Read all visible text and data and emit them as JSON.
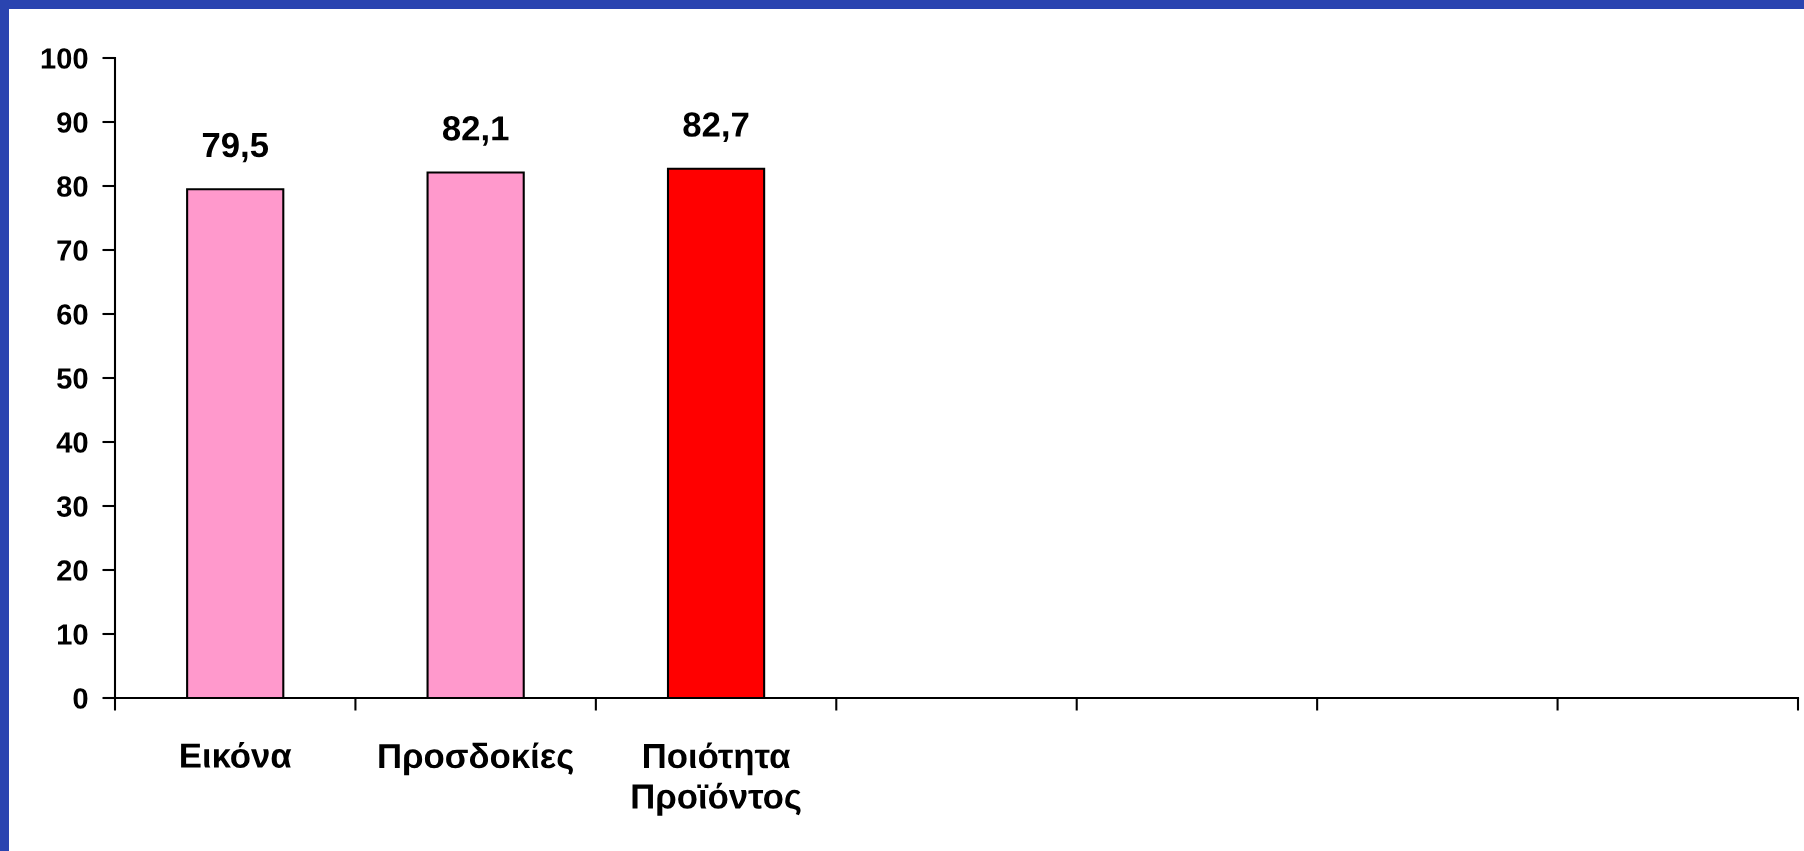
{
  "chart_data": {
    "type": "bar",
    "categories": [
      "Εικόνα",
      "Προσδοκίες",
      "Ποιότητα\nΠροϊόντος",
      null,
      null,
      null,
      null
    ],
    "values": [
      79.5,
      82.1,
      82.7,
      null,
      null,
      null,
      null
    ],
    "colors": [
      "#ff99cc",
      "#ff99cc",
      "#ff0000",
      null,
      null,
      null,
      null
    ],
    "value_labels": [
      "79,5",
      "82,1",
      "82,7",
      null,
      null,
      null,
      null
    ],
    "ylim": [
      0,
      100
    ],
    "yticks": [
      0,
      10,
      20,
      30,
      40,
      50,
      60,
      70,
      80,
      90,
      100
    ],
    "grid": false,
    "legend": false
  }
}
